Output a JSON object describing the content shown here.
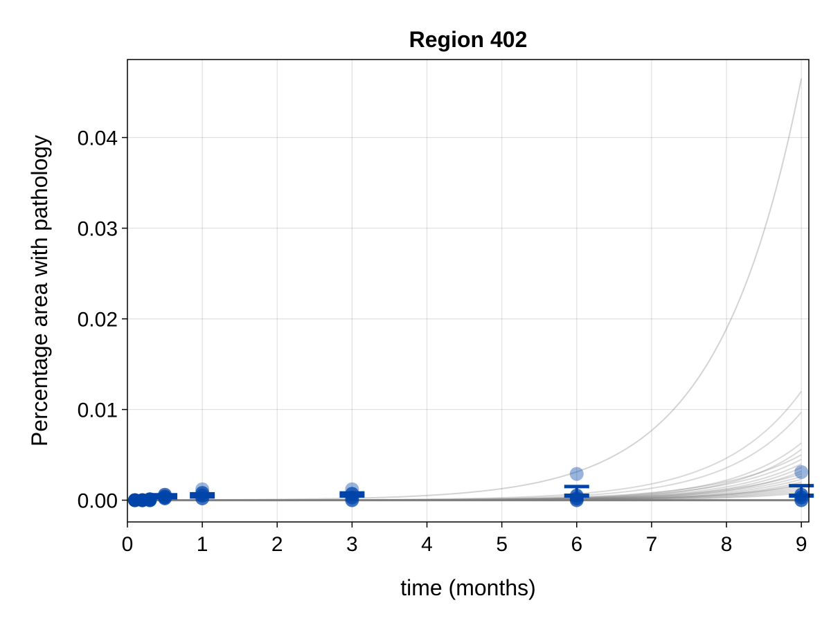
{
  "chart_data": {
    "type": "scatter",
    "title": "Region 402",
    "xlabel": "time (months)",
    "ylabel": "Percentage area with pathology",
    "xlim": [
      0,
      9.1
    ],
    "ylim": [
      -0.0024,
      0.0486
    ],
    "xticks": [
      0,
      1,
      2,
      3,
      4,
      5,
      6,
      7,
      8,
      9
    ],
    "xtick_labels": [
      "0",
      "1",
      "2",
      "3",
      "4",
      "5",
      "6",
      "7",
      "8",
      "9"
    ],
    "yticks": [
      0.0,
      0.01,
      0.02,
      0.03,
      0.04
    ],
    "ytick_labels": [
      "0.00",
      "0.01",
      "0.02",
      "0.03",
      "0.04"
    ],
    "grid": true,
    "colors": {
      "points": "#0044aa",
      "error_bars": "#0044aa",
      "sample_curves": "#808080"
    },
    "observations": [
      {
        "x": 0.1,
        "values": [
          0.0,
          0.0,
          0.0,
          0.0
        ]
      },
      {
        "x": 0.2,
        "values": [
          0.0,
          0.0,
          0.0,
          0.0
        ]
      },
      {
        "x": 0.3,
        "values": [
          0.0,
          0.0001,
          0.0001,
          0.0
        ]
      },
      {
        "x": 0.5,
        "values": [
          0.0002,
          0.0004,
          0.0006,
          0.0003
        ]
      },
      {
        "x": 1.0,
        "values": [
          0.0002,
          0.0005,
          0.0008,
          0.0012
        ]
      },
      {
        "x": 3.0,
        "values": [
          0.0,
          0.0003,
          0.0007,
          0.0012
        ]
      },
      {
        "x": 6.0,
        "values": [
          0.0,
          0.0002,
          0.0005,
          0.0029
        ]
      },
      {
        "x": 9.0,
        "values": [
          0.0,
          0.0003,
          0.0006,
          0.0031
        ]
      }
    ],
    "means": [
      {
        "x": 0.1,
        "mean": 0.0,
        "upper": 0.0001
      },
      {
        "x": 0.2,
        "mean": 0.0,
        "upper": 0.0001
      },
      {
        "x": 0.3,
        "mean": 0.0001,
        "upper": 0.0002
      },
      {
        "x": 0.5,
        "mean": 0.0003,
        "upper": 0.0006
      },
      {
        "x": 1.0,
        "mean": 0.0004,
        "upper": 0.0007
      },
      {
        "x": 3.0,
        "mean": 0.0005,
        "upper": 0.0008
      },
      {
        "x": 6.0,
        "mean": 0.0005,
        "upper": 0.0015
      },
      {
        "x": 9.0,
        "mean": 0.0005,
        "upper": 0.0016
      }
    ],
    "sample_curves_end_values_at_9": [
      0.0465,
      0.012,
      0.0097,
      0.0063,
      0.0056,
      0.005,
      0.0045,
      0.004,
      0.0036,
      0.0032,
      0.0029,
      0.0026,
      0.0023,
      0.002,
      0.0018,
      0.0016,
      0.0014,
      0.0012,
      0.001,
      0.0008
    ]
  }
}
